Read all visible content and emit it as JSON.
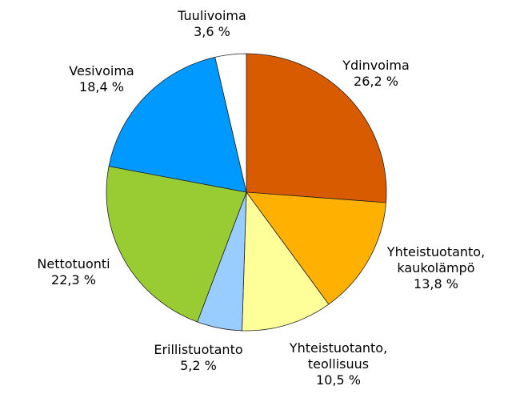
{
  "chart_data": {
    "type": "pie",
    "categories": [
      "Ydinvoima",
      "Yhteistuotanto, kaukolämpö",
      "Yhteistuotanto, teollisuus",
      "Erillistuotanto",
      "Nettotuonti",
      "Vesivoima",
      "Tuulivoima"
    ],
    "values": [
      26.2,
      13.8,
      10.5,
      5.2,
      22.3,
      18.4,
      3.6
    ],
    "value_labels": [
      "26,2 %",
      "13,8 %",
      "10,5 %",
      "5,2 %",
      "22,3 %",
      "18,4 %",
      "3,6 %"
    ],
    "colors": [
      "#d95b00",
      "#ffb000",
      "#ffff99",
      "#99ccff",
      "#99cc33",
      "#0099ff",
      "#ffffff"
    ]
  }
}
